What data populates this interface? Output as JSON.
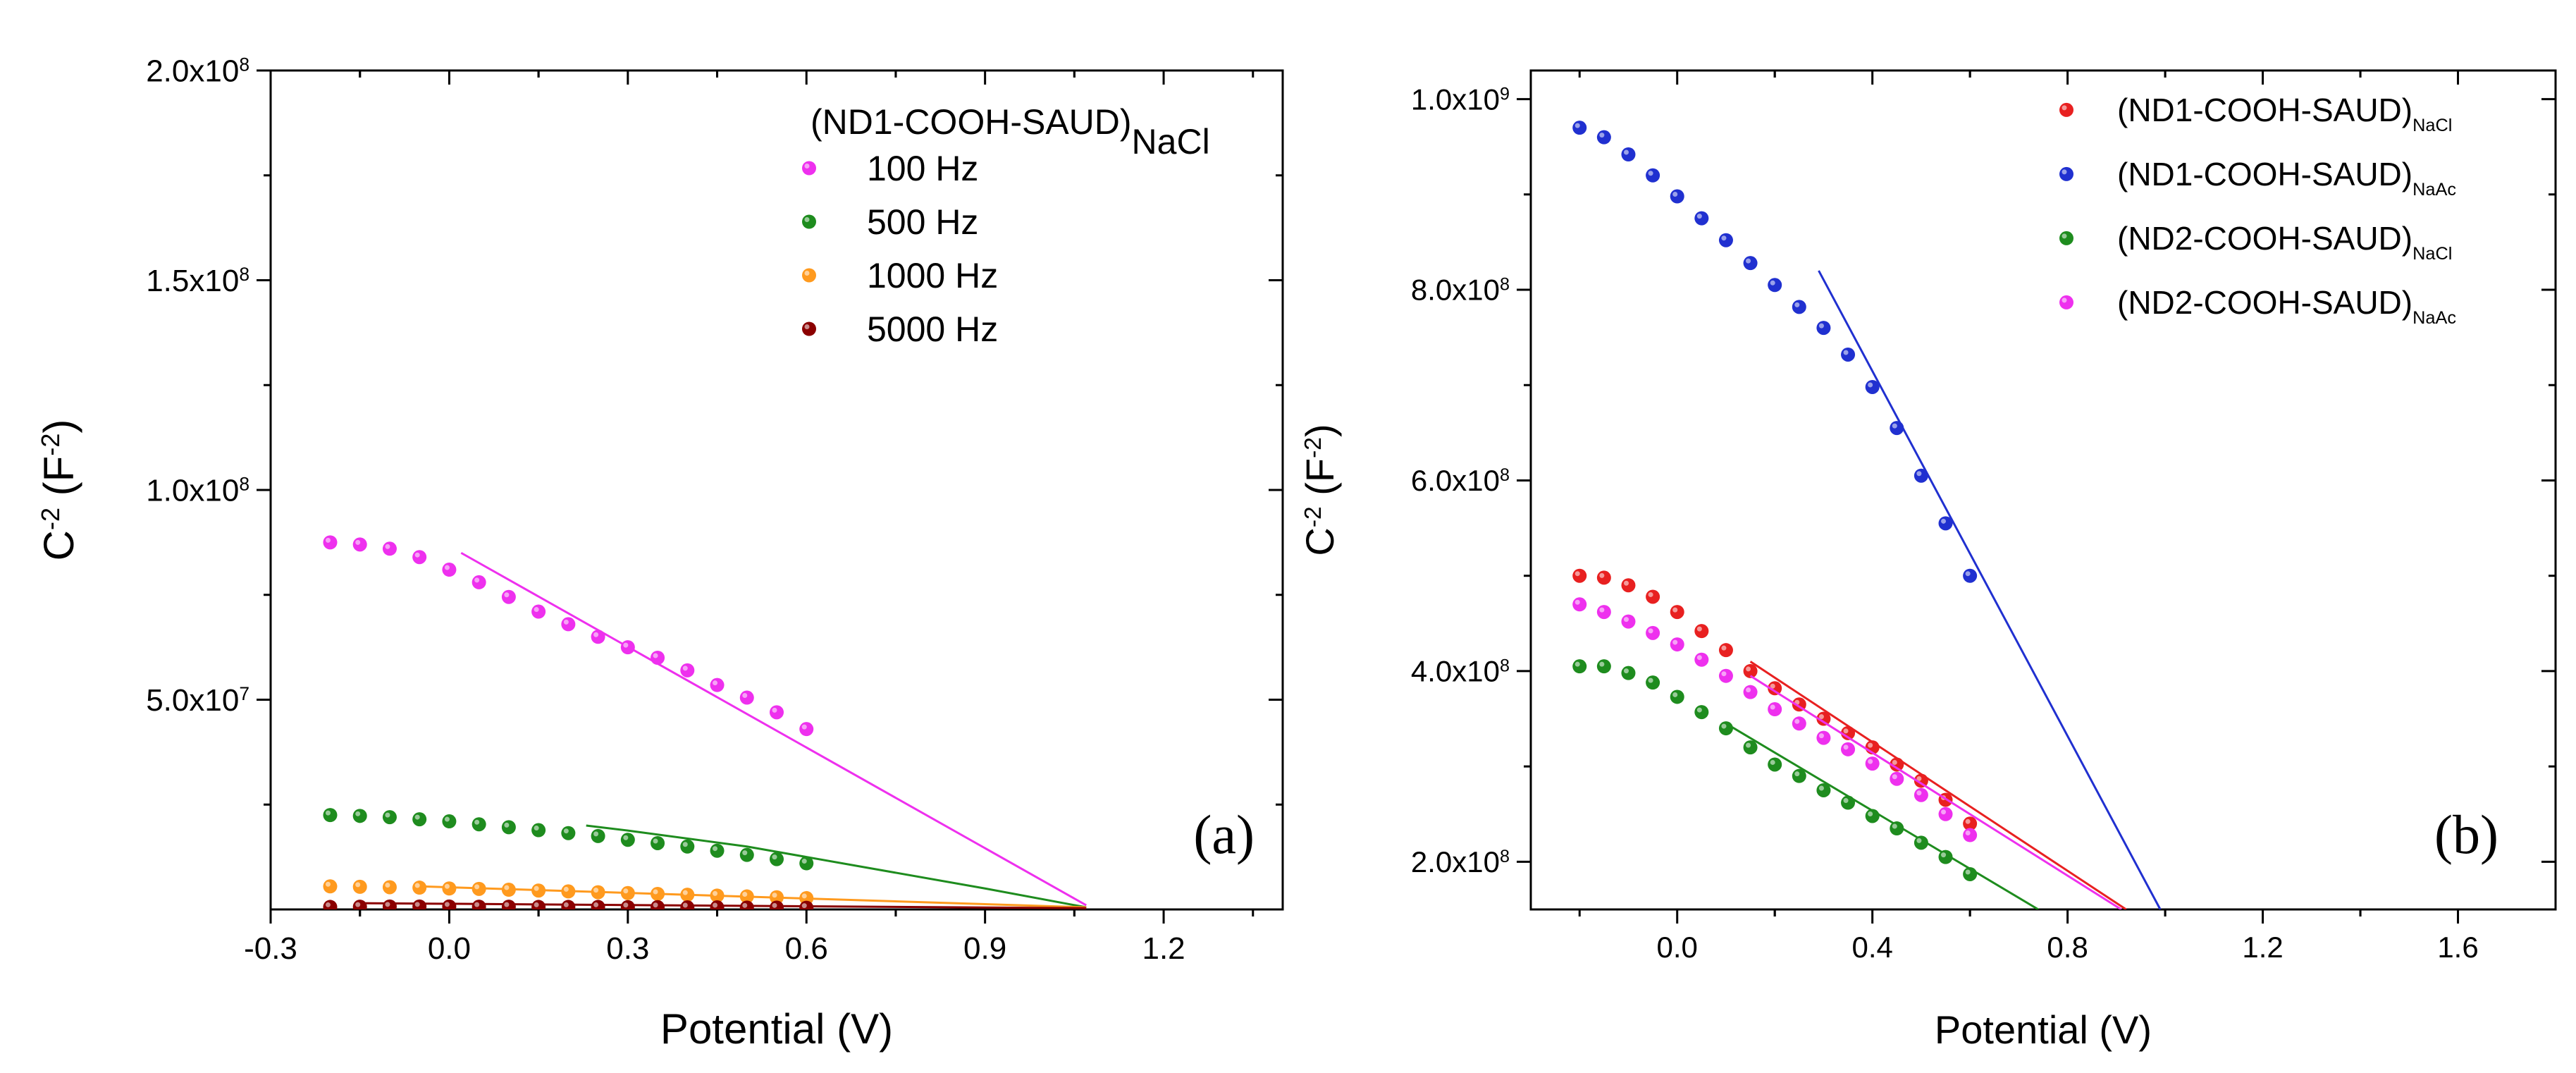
{
  "chart_data": [
    {
      "type": "scatter",
      "panel_label": "(a)",
      "xlabel": "Potential (V)",
      "ylabel": {
        "base": "C",
        "sup": "-2",
        "unit_open": " (F",
        "unit_sup": "-2",
        "unit_close": ")"
      },
      "xlim": [
        -0.3,
        1.4
      ],
      "ylim": [
        0,
        200000000
      ],
      "x_ticks": [
        -0.3,
        0.0,
        0.3,
        0.6,
        0.9,
        1.2
      ],
      "x_tick_labels": [
        "-0.3",
        "0.0",
        "0.3",
        "0.6",
        "0.9",
        "1.2"
      ],
      "y_ticks": [
        50000000,
        100000000,
        150000000,
        200000000
      ],
      "y_tick_labels": [
        {
          "mant": "5.0x10",
          "exp": "7"
        },
        {
          "mant": "1.0x10",
          "exp": "8"
        },
        {
          "mant": "1.5x10",
          "exp": "8"
        },
        {
          "mant": "2.0x10",
          "exp": "8"
        }
      ],
      "legend": {
        "title": "(ND1-COOH-SAUD)",
        "title_sub": "NaCl",
        "position": "top-right"
      },
      "series": [
        {
          "name": "100 Hz",
          "color": "#ee30ee",
          "x": [
            -0.2,
            -0.15,
            -0.1,
            -0.05,
            0.0,
            0.05,
            0.1,
            0.15,
            0.2,
            0.25,
            0.3,
            0.35,
            0.4,
            0.45,
            0.5,
            0.55,
            0.6
          ],
          "y": [
            87500000,
            87000000,
            86000000,
            84000000,
            81000000,
            78000000,
            74500000,
            71000000,
            68000000,
            65000000,
            62500000,
            60000000,
            57000000,
            53500000,
            50500000,
            47000000,
            43000000
          ],
          "fit": {
            "x": [
              0.02,
              1.07
            ],
            "y": [
              85000000,
              1000000
            ]
          }
        },
        {
          "name": "500 Hz",
          "color": "#1e8c1e",
          "x": [
            -0.2,
            -0.15,
            -0.1,
            -0.05,
            0.0,
            0.05,
            0.1,
            0.15,
            0.2,
            0.25,
            0.3,
            0.35,
            0.4,
            0.45,
            0.5,
            0.55,
            0.6
          ],
          "y": [
            22500000,
            22300000,
            22000000,
            21500000,
            21000000,
            20300000,
            19600000,
            18900000,
            18200000,
            17500000,
            16600000,
            15800000,
            15000000,
            14000000,
            13000000,
            12000000,
            11000000
          ],
          "fit": {
            "x": [
              0.23,
              0.3,
              0.5,
              0.7,
              0.9,
              1.07
            ],
            "y": [
              20000000,
              18800000,
              15000000,
              10000000,
              5000000,
              500000
            ]
          }
        },
        {
          "name": "1000 Hz",
          "color": "#ff9a1e",
          "x": [
            -0.2,
            -0.15,
            -0.1,
            -0.05,
            0.0,
            0.05,
            0.1,
            0.15,
            0.2,
            0.25,
            0.3,
            0.35,
            0.4,
            0.45,
            0.5,
            0.55,
            0.6
          ],
          "y": [
            5500000,
            5400000,
            5300000,
            5200000,
            5000000,
            4900000,
            4700000,
            4500000,
            4300000,
            4100000,
            3900000,
            3700000,
            3500000,
            3300000,
            3100000,
            2900000,
            2700000
          ],
          "fit": {
            "x": [
              -0.05,
              1.07
            ],
            "y": [
              5500000,
              500000
            ]
          }
        },
        {
          "name": "5000 Hz",
          "color": "#8b0000",
          "x": [
            -0.2,
            -0.15,
            -0.1,
            -0.05,
            0.0,
            0.05,
            0.1,
            0.15,
            0.2,
            0.25,
            0.3,
            0.35,
            0.4,
            0.45,
            0.5,
            0.55,
            0.6
          ],
          "y": [
            600000,
            650000,
            700000,
            700000,
            700000,
            650000,
            650000,
            600000,
            600000,
            600000,
            550000,
            550000,
            500000,
            500000,
            450000,
            450000,
            400000
          ],
          "fit": {
            "x": [
              -0.15,
              1.07
            ],
            "y": [
              1500000,
              300000
            ]
          }
        }
      ]
    },
    {
      "type": "scatter",
      "panel_label": "(b)",
      "xlabel": "Potential (V)",
      "ylabel": {
        "base": "C",
        "sup": "-2",
        "unit_open": " (F",
        "unit_sup": "-2",
        "unit_close": ")"
      },
      "xlim": [
        -0.3,
        1.8
      ],
      "ylim": [
        150000000,
        1030000000
      ],
      "x_ticks": [
        0.0,
        0.4,
        0.8,
        1.2,
        1.6
      ],
      "x_tick_labels": [
        "0.0",
        "0.4",
        "0.8",
        "1.2",
        "1.6"
      ],
      "y_ticks": [
        200000000,
        400000000,
        600000000,
        800000000,
        1000000000
      ],
      "y_tick_labels": [
        {
          "mant": "2.0x10",
          "exp": "8"
        },
        {
          "mant": "4.0x10",
          "exp": "8"
        },
        {
          "mant": "6.0x10",
          "exp": "8"
        },
        {
          "mant": "8.0x10",
          "exp": "8"
        },
        {
          "mant": "1.0x10",
          "exp": "9"
        }
      ],
      "legend": {
        "position": "top-right"
      },
      "series": [
        {
          "name": "(ND1-COOH-SAUD)",
          "sub": "NaCl",
          "color": "#e82020",
          "x": [
            -0.2,
            -0.15,
            -0.1,
            -0.05,
            0.0,
            0.05,
            0.1,
            0.15,
            0.2,
            0.25,
            0.3,
            0.35,
            0.4,
            0.45,
            0.5,
            0.55,
            0.6
          ],
          "y": [
            500000000,
            498000000,
            490000000,
            478000000,
            462000000,
            442000000,
            422000000,
            400000000,
            382000000,
            365000000,
            350000000,
            335000000,
            320000000,
            302000000,
            285000000,
            265000000,
            240000000
          ],
          "fit": {
            "x": [
              0.15,
              0.92
            ],
            "y": [
              410000000,
              150000000
            ]
          }
        },
        {
          "name": "(ND1-COOH-SAUD)",
          "sub": "NaAc",
          "color": "#2030d0",
          "x": [
            -0.2,
            -0.15,
            -0.1,
            -0.05,
            0.0,
            0.05,
            0.1,
            0.15,
            0.2,
            0.25,
            0.3,
            0.35,
            0.4,
            0.45,
            0.5,
            0.55,
            0.6
          ],
          "y": [
            970000000,
            960000000,
            942000000,
            920000000,
            898000000,
            875000000,
            852000000,
            828000000,
            805000000,
            782000000,
            760000000,
            732000000,
            698000000,
            655000000,
            605000000,
            555000000,
            500000000
          ],
          "fit": {
            "x": [
              0.29,
              0.99
            ],
            "y": [
              820000000,
              150000000
            ]
          }
        },
        {
          "name": "(ND2-COOH-SAUD)",
          "sub": "NaCl",
          "color": "#1e8c1e",
          "x": [
            -0.2,
            -0.15,
            -0.1,
            -0.05,
            0.0,
            0.05,
            0.1,
            0.15,
            0.2,
            0.25,
            0.3,
            0.35,
            0.4,
            0.45,
            0.5,
            0.55,
            0.6
          ],
          "y": [
            405000000,
            405000000,
            398000000,
            388000000,
            373000000,
            357000000,
            340000000,
            320000000,
            302000000,
            290000000,
            275000000,
            262000000,
            248000000,
            235000000,
            220000000,
            205000000,
            187000000
          ],
          "fit": {
            "x": [
              0.1,
              0.74
            ],
            "y": [
              345000000,
              150000000
            ]
          }
        },
        {
          "name": "(ND2-COOH-SAUD)",
          "sub": "NaAc",
          "color": "#ee30ee",
          "x": [
            -0.2,
            -0.15,
            -0.1,
            -0.05,
            0.0,
            0.05,
            0.1,
            0.15,
            0.2,
            0.25,
            0.3,
            0.35,
            0.4,
            0.45,
            0.5,
            0.55,
            0.6
          ],
          "y": [
            470000000,
            462000000,
            452000000,
            440000000,
            428000000,
            412000000,
            395000000,
            378000000,
            360000000,
            345000000,
            330000000,
            318000000,
            303000000,
            287000000,
            270000000,
            250000000,
            228000000
          ],
          "fit": {
            "x": [
              0.15,
              0.91
            ],
            "y": [
              395000000,
              150000000
            ]
          }
        }
      ]
    }
  ]
}
